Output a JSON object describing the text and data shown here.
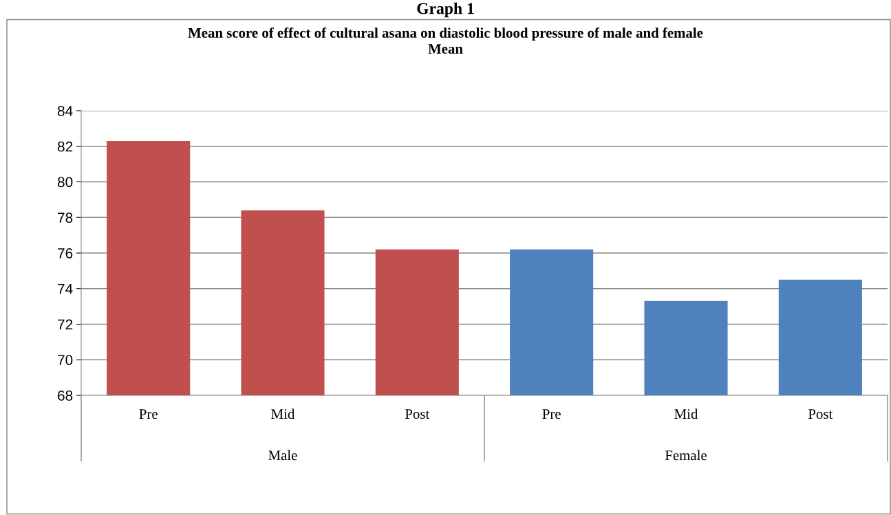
{
  "chart_data": {
    "type": "bar",
    "title": "Graph 1",
    "subtitle": "Mean score of effect of cultural asana on diastolic blood pressure of male and female\nMean",
    "categories": [
      "Pre",
      "Mid",
      "Post",
      "Pre",
      "Mid",
      "Post"
    ],
    "values": [
      82.3,
      78.4,
      76.2,
      76.2,
      73.3,
      74.5
    ],
    "colors": [
      "#c0504d",
      "#c0504d",
      "#c0504d",
      "#4f81bd",
      "#4f81bd",
      "#4f81bd"
    ],
    "annotations": [
      "Male",
      "Female"
    ],
    "ylim": [
      68,
      84
    ],
    "yticks": [
      68,
      70,
      72,
      74,
      76,
      78,
      80,
      82,
      84
    ],
    "grid": "y",
    "legend": false
  }
}
